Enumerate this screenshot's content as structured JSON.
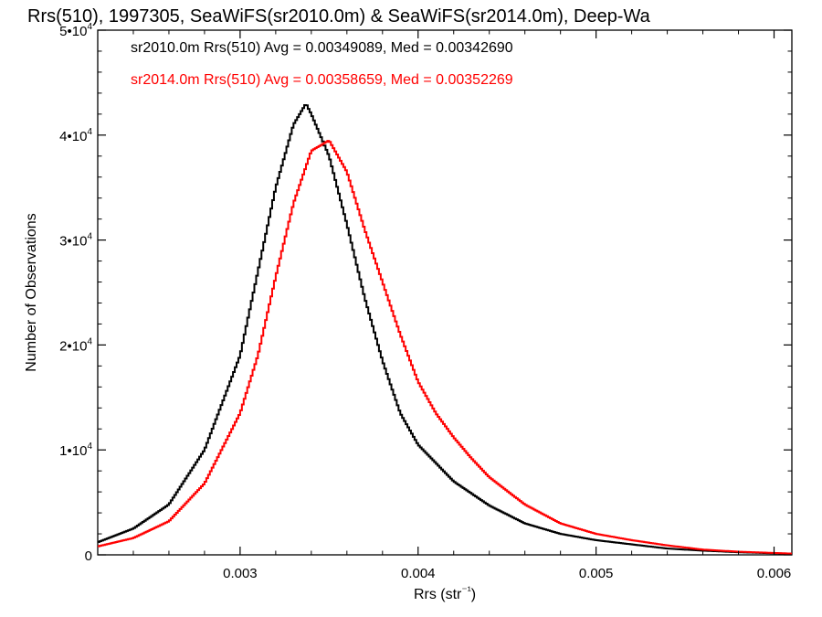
{
  "chart_data": {
    "type": "histogram-step",
    "title": "Rrs(510), 1997305, SeaWiFS(sr2010.0m) & SeaWiFS(sr2014.0m), Deep-Wa",
    "xlabel": "Rrs (str⁻¹)",
    "ylabel": "Number of Observations",
    "xlim": [
      0.0022,
      0.0061
    ],
    "ylim": [
      0,
      50000
    ],
    "x_ticks": [
      {
        "value": 0.003,
        "label": "0.003"
      },
      {
        "value": 0.004,
        "label": "0.004"
      },
      {
        "value": 0.005,
        "label": "0.005"
      },
      {
        "value": 0.006,
        "label": "0.006"
      }
    ],
    "y_ticks": [
      {
        "value": 0,
        "label": "0"
      },
      {
        "value": 10000,
        "mant": "1•10",
        "exp": "4"
      },
      {
        "value": 20000,
        "mant": "2•10",
        "exp": "4"
      },
      {
        "value": 30000,
        "mant": "3•10",
        "exp": "4"
      },
      {
        "value": 40000,
        "mant": "4•10",
        "exp": "4"
      },
      {
        "value": 50000,
        "mant": "5•10",
        "exp": "4"
      }
    ],
    "legend": [
      "sr2010.0m Rrs(510) Avg = 0.00349089, Med = 0.00342690",
      "sr2014.0m Rrs(510) Avg = 0.00358659, Med = 0.00352269"
    ],
    "series": [
      {
        "color": "#000000",
        "points": [
          [
            0.0022,
            1200
          ],
          [
            0.0024,
            2500
          ],
          [
            0.0026,
            4800
          ],
          [
            0.0028,
            10000
          ],
          [
            0.003,
            19000
          ],
          [
            0.0031,
            27000
          ],
          [
            0.0032,
            35000
          ],
          [
            0.0033,
            41000
          ],
          [
            0.00337,
            43000
          ],
          [
            0.0034,
            42000
          ],
          [
            0.0035,
            38000
          ],
          [
            0.0036,
            31500
          ],
          [
            0.0037,
            24500
          ],
          [
            0.0038,
            18500
          ],
          [
            0.0039,
            13500
          ],
          [
            0.004,
            10500
          ],
          [
            0.0042,
            7000
          ],
          [
            0.0044,
            4700
          ],
          [
            0.0046,
            3000
          ],
          [
            0.0048,
            2000
          ],
          [
            0.005,
            1400
          ],
          [
            0.0052,
            1000
          ],
          [
            0.0054,
            600
          ],
          [
            0.0056,
            400
          ],
          [
            0.0058,
            250
          ],
          [
            0.0061,
            100
          ]
        ]
      },
      {
        "color": "#ff0000",
        "points": [
          [
            0.0022,
            800
          ],
          [
            0.0024,
            1600
          ],
          [
            0.0026,
            3200
          ],
          [
            0.0028,
            6800
          ],
          [
            0.003,
            13500
          ],
          [
            0.0031,
            19000
          ],
          [
            0.0032,
            26500
          ],
          [
            0.0033,
            33500
          ],
          [
            0.0034,
            38500
          ],
          [
            0.0035,
            39500
          ],
          [
            0.0036,
            36500
          ],
          [
            0.0037,
            31000
          ],
          [
            0.0038,
            26000
          ],
          [
            0.0039,
            21000
          ],
          [
            0.004,
            16500
          ],
          [
            0.0041,
            13500
          ],
          [
            0.0042,
            11200
          ],
          [
            0.0043,
            9200
          ],
          [
            0.0044,
            7400
          ],
          [
            0.0046,
            4800
          ],
          [
            0.0048,
            3000
          ],
          [
            0.005,
            2000
          ],
          [
            0.0052,
            1400
          ],
          [
            0.0054,
            900
          ],
          [
            0.0056,
            500
          ],
          [
            0.0058,
            300
          ],
          [
            0.0061,
            120
          ]
        ]
      }
    ]
  }
}
